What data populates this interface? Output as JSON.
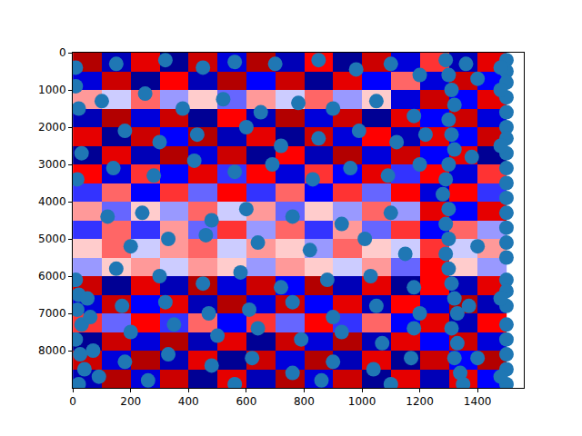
{
  "chart_data": {
    "type": "heatmap",
    "cell_x": [
      50,
      150,
      250,
      350,
      450,
      550,
      650,
      750,
      850,
      950,
      1050,
      1150,
      1250,
      1350,
      1450
    ],
    "cell_y": [
      250,
      750,
      1250,
      1750,
      2250,
      2750,
      3250,
      3750,
      4250,
      4750,
      5250,
      5750,
      6250,
      6750,
      7250,
      7750,
      8250,
      8750
    ],
    "cells": [
      [
        0.8,
        -0.7,
        0.6,
        -0.8,
        0.7,
        -0.6,
        0.8,
        -0.7,
        0.5,
        -0.8,
        0.7,
        -0.6,
        0.4,
        -0.7,
        0.6
      ],
      [
        -0.6,
        0.7,
        -0.8,
        0.5,
        -0.7,
        0.8,
        -0.5,
        0.7,
        -0.8,
        0.6,
        -0.5,
        0.3,
        -0.6,
        0.7,
        -0.5
      ],
      [
        0.2,
        -0.1,
        0.3,
        -0.2,
        0.1,
        -0.3,
        0.2,
        -0.1,
        0.3,
        -0.2,
        0.1,
        -0.6,
        0.7,
        -0.5,
        0.6
      ],
      [
        -0.7,
        0.8,
        -0.6,
        0.7,
        -0.8,
        0.5,
        -0.7,
        0.8,
        -0.6,
        0.7,
        -0.8,
        0.6,
        -0.5,
        0.7,
        -0.6
      ],
      [
        0.6,
        -0.8,
        0.7,
        -0.5,
        0.8,
        -0.7,
        0.6,
        -0.8,
        0.7,
        -0.6,
        0.5,
        -0.7,
        0.6,
        -0.5,
        0.7
      ],
      [
        -0.8,
        0.6,
        -0.7,
        0.8,
        -0.6,
        0.7,
        -0.8,
        0.5,
        -0.7,
        0.8,
        -0.6,
        0.7,
        -0.5,
        0.6,
        -0.8
      ],
      [
        0.5,
        -0.6,
        0.4,
        -0.5,
        0.6,
        -0.4,
        0.5,
        -0.6,
        0.4,
        -0.5,
        0.6,
        -0.4,
        0.5,
        -0.6,
        0.4
      ],
      [
        -0.4,
        0.3,
        -0.5,
        0.4,
        -0.3,
        0.5,
        -0.4,
        0.3,
        -0.5,
        0.4,
        -0.3,
        0.5,
        -0.6,
        0.5,
        -0.4
      ],
      [
        0.2,
        -0.3,
        0.1,
        -0.2,
        0.3,
        -0.1,
        0.2,
        -0.3,
        0.1,
        -0.2,
        0.3,
        -0.2,
        0.6,
        -0.5,
        0.6
      ],
      [
        -0.4,
        0.3,
        -0.4,
        0.2,
        -0.3,
        0.4,
        -0.2,
        0.3,
        -0.4,
        0.2,
        -0.3,
        0.4,
        -0.5,
        0.3,
        -0.2
      ],
      [
        0.1,
        0.3,
        -0.1,
        0.2,
        0.3,
        -0.1,
        0.2,
        0.1,
        -0.2,
        0.3,
        0.1,
        -0.1,
        0.4,
        -0.1,
        0.2
      ],
      [
        -0.2,
        0.1,
        0.2,
        -0.1,
        0.2,
        0.1,
        -0.2,
        0.2,
        0.1,
        -0.1,
        0.2,
        -0.3,
        0.5,
        0.1,
        -0.2
      ],
      [
        0.7,
        -0.8,
        0.6,
        -0.7,
        0.8,
        -0.6,
        0.7,
        -0.5,
        0.8,
        -0.7,
        0.6,
        -0.8,
        0.5,
        -0.7,
        0.6
      ],
      [
        -0.6,
        0.7,
        -0.5,
        0.6,
        -0.7,
        0.8,
        -0.6,
        0.7,
        -0.5,
        0.6,
        -0.7,
        0.5,
        -0.6,
        0.8,
        -0.7
      ],
      [
        0.4,
        -0.3,
        0.5,
        -0.4,
        0.3,
        -0.5,
        0.4,
        -0.3,
        0.5,
        -0.4,
        0.3,
        -0.5,
        0.6,
        -0.7,
        0.5
      ],
      [
        -0.8,
        0.7,
        -0.6,
        0.8,
        -0.7,
        0.6,
        -0.8,
        0.7,
        -0.6,
        0.8,
        -0.7,
        0.6,
        -0.5,
        0.7,
        -0.6
      ],
      [
        0.7,
        -0.6,
        0.8,
        -0.7,
        0.6,
        -0.8,
        0.7,
        -0.6,
        0.8,
        -0.7,
        0.6,
        -0.8,
        0.7,
        -0.5,
        0.8
      ],
      [
        -0.7,
        0.8,
        -0.6,
        0.7,
        -0.8,
        0.6,
        -0.7,
        0.8,
        -0.6,
        0.7,
        -0.8,
        0.6,
        -0.7,
        0.6,
        -0.5
      ]
    ],
    "zlim": [
      -1,
      1
    ],
    "series": [
      {
        "type": "scatter",
        "color": "#1f77b4",
        "marker": "circle",
        "x": [
          1500,
          1500,
          1500,
          1500,
          1500,
          1500,
          1500,
          1500,
          1500,
          1500,
          1500,
          1500,
          1500,
          1500,
          1500,
          1500,
          1500,
          1500,
          1500,
          1500,
          1500,
          1500,
          1500,
          1480,
          1480,
          1480,
          1480,
          1480,
          1290,
          1300,
          1310,
          1320,
          1300,
          1310,
          1320,
          1300,
          1290,
          1280,
          1300,
          1290,
          1300,
          1290,
          1300,
          1310,
          1320,
          1330,
          1310,
          1330,
          1320,
          1340,
          1350,
          1360,
          1400,
          1380,
          1370,
          1400,
          10,
          20,
          15,
          30,
          10,
          25,
          40,
          20,
          60,
          70,
          90,
          50,
          10,
          20,
          30,
          15,
          10,
          150,
          320,
          450,
          560,
          700,
          850,
          980,
          1100,
          1200,
          100,
          250,
          380,
          520,
          650,
          780,
          900,
          1050,
          1180,
          180,
          300,
          430,
          600,
          720,
          850,
          990,
          1120,
          1220,
          140,
          280,
          420,
          560,
          690,
          830,
          960,
          1090,
          1200,
          120,
          240,
          480,
          600,
          760,
          930,
          1100,
          200,
          330,
          460,
          640,
          820,
          1010,
          1150,
          1400,
          150,
          300,
          450,
          580,
          720,
          880,
          1030,
          1180,
          170,
          320,
          470,
          610,
          760,
          900,
          1050,
          1200,
          200,
          350,
          500,
          640,
          790,
          930,
          1070,
          1180,
          180,
          330,
          480,
          620,
          760,
          900,
          1040,
          1170,
          260,
          560,
          860,
          1100
        ],
        "y": [
          200,
          500,
          800,
          1200,
          1600,
          2000,
          2300,
          2700,
          3100,
          3500,
          3900,
          4300,
          4700,
          5100,
          5500,
          6100,
          6400,
          6800,
          7300,
          7700,
          8100,
          8500,
          8900,
          400,
          1000,
          2500,
          6600,
          8700,
          200,
          600,
          1000,
          1400,
          1800,
          2200,
          2600,
          3000,
          3400,
          3800,
          4200,
          4600,
          5000,
          5400,
          5800,
          6200,
          6600,
          7000,
          7400,
          7800,
          8200,
          8600,
          8900,
          300,
          700,
          2800,
          6800,
          8200,
          6100,
          6500,
          6900,
          7300,
          7700,
          8100,
          8500,
          8900,
          7100,
          8000,
          8700,
          6600,
          400,
          1500,
          2700,
          3400,
          900,
          300,
          200,
          400,
          250,
          300,
          200,
          450,
          300,
          600,
          1300,
          1100,
          1500,
          1250,
          1600,
          1350,
          1500,
          1300,
          1700,
          2100,
          2400,
          2200,
          2000,
          2500,
          2300,
          2100,
          2400,
          2200,
          3100,
          3300,
          2900,
          3200,
          3000,
          3400,
          3100,
          3300,
          3000,
          4400,
          4300,
          4500,
          4200,
          4400,
          4600,
          4300,
          5200,
          5000,
          4900,
          5100,
          5300,
          5000,
          5400,
          5200,
          5800,
          6000,
          6200,
          5900,
          6300,
          6100,
          6000,
          6300,
          6800,
          6700,
          7000,
          6900,
          6700,
          7100,
          6800,
          7000,
          7500,
          7300,
          7600,
          7400,
          7700,
          7500,
          7800,
          7400,
          8300,
          8100,
          8400,
          8200,
          8600,
          8300,
          8500,
          8200,
          8800,
          8900,
          8800,
          8900
        ]
      }
    ],
    "xlim": [
      -0.5,
      1560
    ],
    "ylim": [
      9000,
      0
    ],
    "xticks": [
      0,
      200,
      400,
      600,
      800,
      1000,
      1200,
      1400
    ],
    "yticks": [
      0,
      1000,
      2000,
      3000,
      4000,
      5000,
      6000,
      7000,
      8000
    ],
    "grid": false
  }
}
